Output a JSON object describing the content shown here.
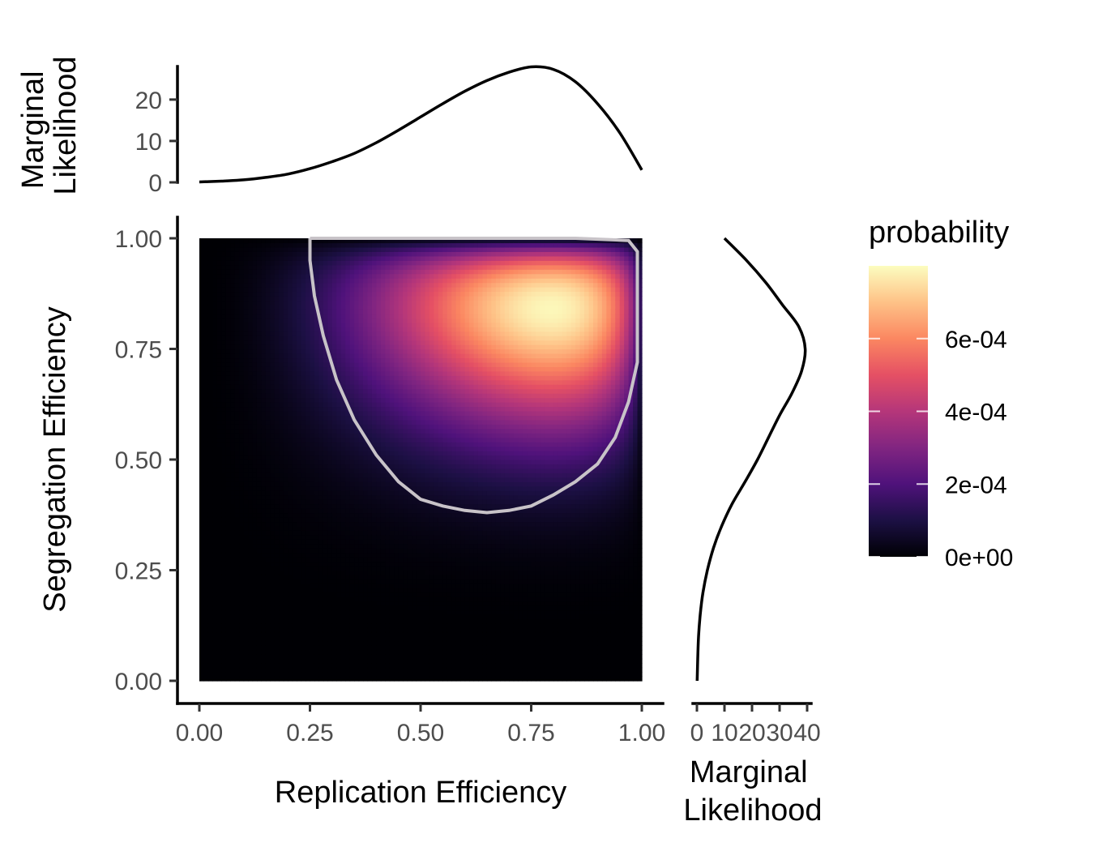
{
  "chart_data": [
    {
      "id": "heatmap",
      "type": "heatmap",
      "xlabel": "Replication Efficiency",
      "ylabel": "Segregation Efficiency",
      "xlim": [
        0,
        1
      ],
      "ylim": [
        0,
        1
      ],
      "x_ticks": [
        "0.00",
        "0.25",
        "0.50",
        "0.75",
        "1.00"
      ],
      "y_ticks": [
        "0.00",
        "0.25",
        "0.50",
        "0.75",
        "1.00"
      ],
      "grid_resolution": 100,
      "value_field": "probability",
      "peak": {
        "x": 0.8,
        "y": 0.86,
        "value": 0.00079
      },
      "contour": {
        "color": "#c8c3c8",
        "points": [
          [
            0.25,
            1.0
          ],
          [
            0.25,
            0.95
          ],
          [
            0.26,
            0.87
          ],
          [
            0.28,
            0.78
          ],
          [
            0.31,
            0.68
          ],
          [
            0.35,
            0.59
          ],
          [
            0.4,
            0.51
          ],
          [
            0.45,
            0.45
          ],
          [
            0.5,
            0.41
          ],
          [
            0.55,
            0.395
          ],
          [
            0.6,
            0.385
          ],
          [
            0.65,
            0.38
          ],
          [
            0.7,
            0.385
          ],
          [
            0.75,
            0.395
          ],
          [
            0.8,
            0.42
          ],
          [
            0.85,
            0.45
          ],
          [
            0.9,
            0.49
          ],
          [
            0.94,
            0.55
          ],
          [
            0.97,
            0.63
          ],
          [
            0.99,
            0.72
          ],
          [
            0.99,
            0.97
          ],
          [
            0.97,
            0.995
          ],
          [
            0.85,
            1.0
          ],
          [
            0.25,
            1.0
          ]
        ]
      }
    },
    {
      "id": "marginal-top",
      "type": "line",
      "ylabel": "Marginal Likelihood",
      "xlim": [
        0,
        1
      ],
      "ylim": [
        0,
        28
      ],
      "y_ticks": [
        "0",
        "10",
        "20"
      ],
      "x": [
        0.0,
        0.05,
        0.1,
        0.15,
        0.2,
        0.25,
        0.3,
        0.35,
        0.4,
        0.45,
        0.5,
        0.55,
        0.6,
        0.65,
        0.7,
        0.75,
        0.8,
        0.85,
        0.9,
        0.95,
        1.0
      ],
      "y": [
        0.1,
        0.3,
        0.6,
        1.2,
        2.0,
        3.3,
        5.0,
        7.0,
        9.6,
        12.6,
        15.8,
        19.0,
        22.0,
        24.6,
        26.6,
        27.9,
        27.3,
        24.3,
        19.0,
        12.0,
        3.0
      ]
    },
    {
      "id": "marginal-right",
      "type": "line",
      "xlabel": "Marginal Likelihood",
      "xlim": [
        0,
        40
      ],
      "ylim": [
        0,
        1
      ],
      "x_ticks": [
        "0",
        "10",
        "20",
        "30",
        "40"
      ],
      "x": [
        0.1,
        0.3,
        0.6,
        1.2,
        2.2,
        3.8,
        6.0,
        9.0,
        12.8,
        17.5,
        22.0,
        26.0,
        30.0,
        34.5,
        38.0,
        39.3,
        37.0,
        31.0,
        25.0,
        18.0,
        10.0
      ],
      "y": [
        0.0,
        0.05,
        0.1,
        0.15,
        0.2,
        0.25,
        0.3,
        0.35,
        0.4,
        0.45,
        0.5,
        0.55,
        0.6,
        0.65,
        0.7,
        0.75,
        0.8,
        0.85,
        0.9,
        0.95,
        1.0
      ]
    }
  ],
  "legend": {
    "title": "probability",
    "placement": "right",
    "max": 0.0008,
    "breaks": [
      {
        "value": 0.0006,
        "label": "6e-04"
      },
      {
        "value": 0.0004,
        "label": "4e-04"
      },
      {
        "value": 0.0002,
        "label": "2e-04"
      },
      {
        "value": 0.0,
        "label": "0e+00"
      }
    ],
    "colors": [
      "#000004",
      "#1c1044",
      "#4f127b",
      "#812581",
      "#b5367a",
      "#e55064",
      "#fb8761",
      "#fec287",
      "#fcfdbf"
    ]
  }
}
